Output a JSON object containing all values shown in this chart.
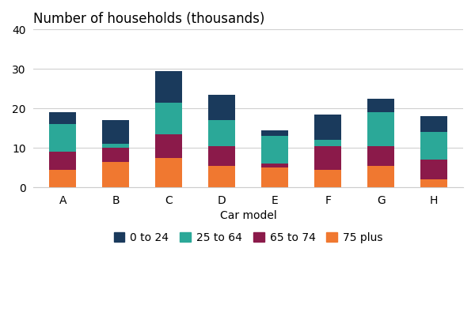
{
  "categories": [
    "A",
    "B",
    "C",
    "D",
    "E",
    "F",
    "G",
    "H"
  ],
  "series": {
    "75 plus": [
      4.5,
      6.5,
      7.5,
      5.5,
      5.0,
      4.5,
      5.5,
      2.0
    ],
    "65 to 74": [
      4.5,
      3.5,
      6.0,
      5.0,
      1.0,
      6.0,
      5.0,
      5.0
    ],
    "25 to 64": [
      7.0,
      1.0,
      8.0,
      6.5,
      7.0,
      1.5,
      8.5,
      7.0
    ],
    "0 to 24": [
      3.0,
      6.0,
      8.0,
      6.5,
      1.5,
      6.5,
      3.5,
      4.0
    ]
  },
  "colors": {
    "75 plus": "#F07830",
    "65 to 74": "#8B1A4A",
    "25 to 64": "#2BA898",
    "0 to 24": "#1A3A5C"
  },
  "title": "Number of households (thousands)",
  "xlabel": "Car model",
  "ylim": [
    0,
    40
  ],
  "yticks": [
    0,
    10,
    20,
    30,
    40
  ],
  "title_fontsize": 12,
  "label_fontsize": 10,
  "tick_fontsize": 10,
  "legend_fontsize": 10,
  "background_color": "#ffffff",
  "grid_color": "#d0d0d0"
}
